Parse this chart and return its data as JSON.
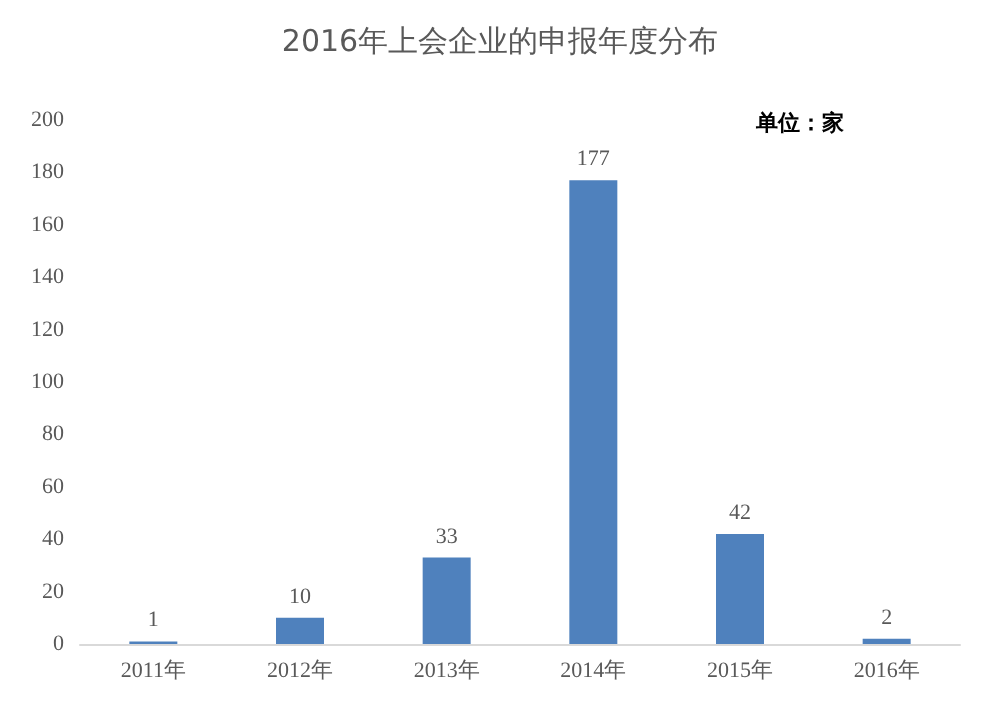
{
  "chart_data": {
    "type": "bar",
    "title": "2016年上会企业的申报年度分布",
    "annotations": [
      "单位：家"
    ],
    "categories": [
      "2011年",
      "2012年",
      "2013年",
      "2014年",
      "2015年",
      "2016年"
    ],
    "values": [
      1,
      10,
      33,
      177,
      42,
      2
    ],
    "color": "#4f81bd",
    "ylim": [
      0,
      200
    ],
    "yticks": [
      0,
      20,
      40,
      60,
      80,
      100,
      120,
      140,
      160,
      180,
      200
    ],
    "grid": false,
    "data_labels": true
  }
}
